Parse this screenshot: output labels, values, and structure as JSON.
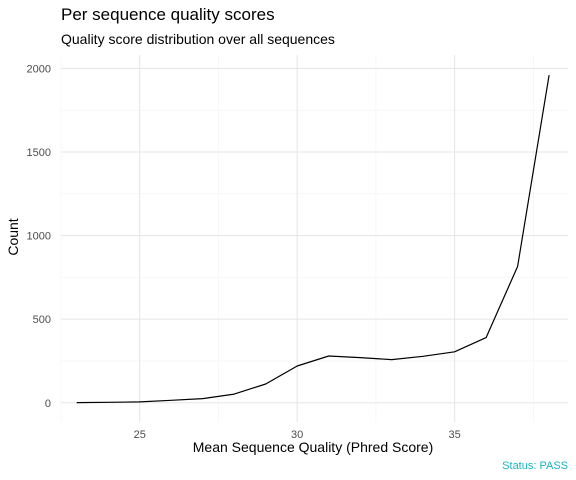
{
  "title": "Per sequence quality scores",
  "subtitle": "Quality score distribution over all sequences",
  "status": {
    "text": "Status: PASS",
    "color": "#17b5c4"
  },
  "colors": {
    "line": "#000000",
    "grid_major": "#e5e5e5",
    "grid_minor": "#f2f2f2"
  },
  "chart_data": {
    "type": "line",
    "title": "Per sequence quality scores",
    "subtitle": "Quality score distribution over all sequences",
    "xlabel": "Mean Sequence Quality (Phred Score)",
    "ylabel": "Count",
    "xlim": [
      22.5,
      38.6
    ],
    "ylim": [
      -115,
      2080
    ],
    "x_ticks": [
      25,
      30,
      35
    ],
    "y_ticks": [
      0,
      500,
      1000,
      1500,
      2000
    ],
    "grid": true,
    "legend": "none",
    "series": [
      {
        "x": [
          23,
          24,
          25,
          26,
          27,
          28,
          29,
          30,
          31,
          32,
          33,
          34,
          35,
          36,
          37,
          38
        ],
        "values": [
          1,
          3,
          5,
          15,
          25,
          52,
          112,
          220,
          280,
          270,
          258,
          278,
          305,
          390,
          815,
          1960
        ]
      }
    ]
  }
}
